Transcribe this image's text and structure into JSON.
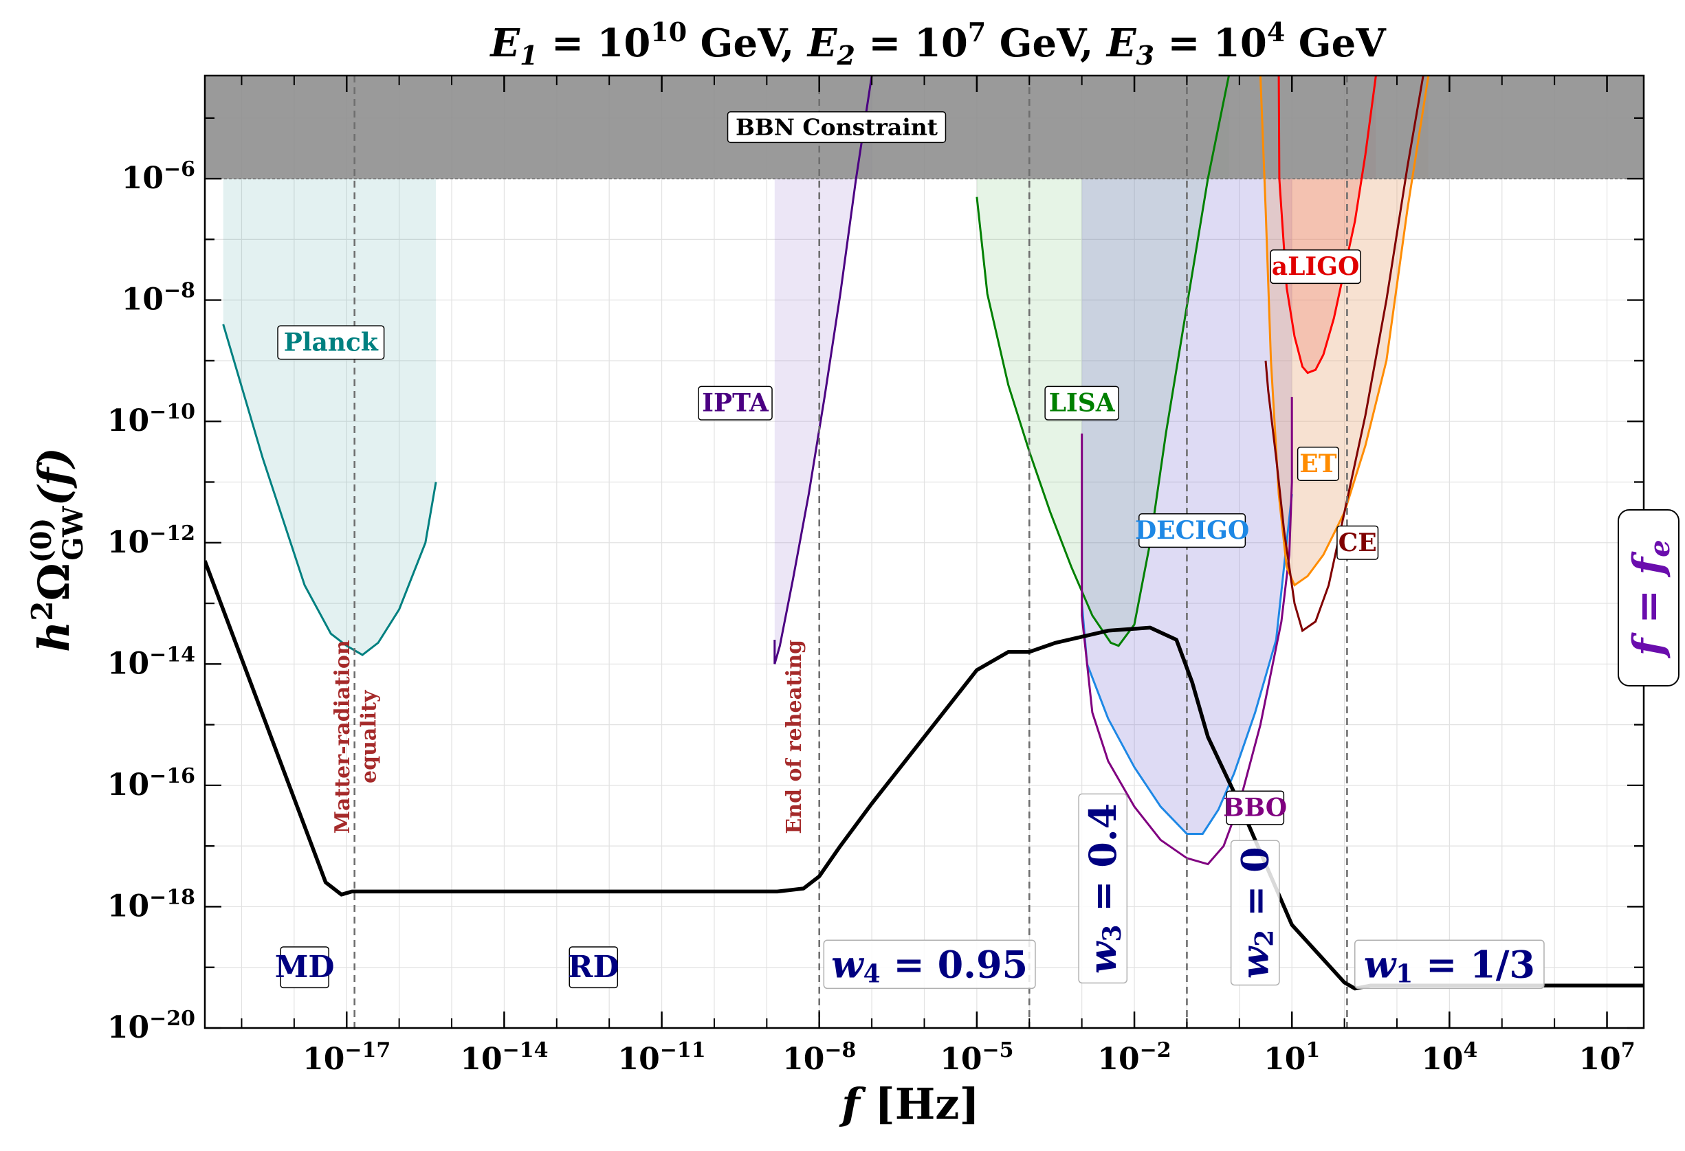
{
  "chart_data": {
    "type": "line",
    "title": "E1 = 10^10 GeV,  E2 = 10^7 GeV,  E3 = 10^4 GeV",
    "title_parts": [
      {
        "var": "E",
        "sub": "1",
        "eq": " = 10",
        "sup": "10",
        "unit": " GeV,"
      },
      {
        "var": "E",
        "sub": "2",
        "eq": " = 10",
        "sup": "7",
        "unit": " GeV,"
      },
      {
        "var": "E",
        "sub": "3",
        "eq": " = 10",
        "sup": "4",
        "unit": " GeV"
      }
    ],
    "xlabel": {
      "var": "f",
      "unit": " [Hz]"
    },
    "ylabel": {
      "pre": "h",
      "sup2": "2",
      "omega": "Ω",
      "sup0": "(0)",
      "sub": "GW",
      "post": "(f)"
    },
    "xscale": "log10",
    "yscale": "log10",
    "xlim": [
      -19.7,
      7.7
    ],
    "ylim": [
      -20,
      -4.3
    ],
    "x_ticks": [
      {
        "exp": -17,
        "label": "10",
        "sup": "−17"
      },
      {
        "exp": -14,
        "label": "10",
        "sup": "−14"
      },
      {
        "exp": -11,
        "label": "10",
        "sup": "−11"
      },
      {
        "exp": -8,
        "label": "10",
        "sup": "−8"
      },
      {
        "exp": -5,
        "label": "10",
        "sup": "−5"
      },
      {
        "exp": -2,
        "label": "10",
        "sup": "−2"
      },
      {
        "exp": 1,
        "label": "10",
        "sup": "1"
      },
      {
        "exp": 4,
        "label": "10",
        "sup": "4"
      },
      {
        "exp": 7,
        "label": "10",
        "sup": "7"
      }
    ],
    "y_ticks": [
      {
        "exp": -6,
        "label": "10",
        "sup": "−6"
      },
      {
        "exp": -8,
        "label": "10",
        "sup": "−8"
      },
      {
        "exp": -10,
        "label": "10",
        "sup": "−10"
      },
      {
        "exp": -12,
        "label": "10",
        "sup": "−12"
      },
      {
        "exp": -14,
        "label": "10",
        "sup": "−14"
      },
      {
        "exp": -16,
        "label": "10",
        "sup": "−16"
      },
      {
        "exp": -18,
        "label": "10",
        "sup": "−18"
      },
      {
        "exp": -20,
        "label": "10",
        "sup": "−20"
      }
    ],
    "grid": true,
    "bbn": {
      "label": "BBN Constraint",
      "y_min_log": -6,
      "color": "#8c8c8c"
    },
    "gw_spectrum": {
      "name": "GW spectrum",
      "color": "#000000",
      "log_f": [
        -19.7,
        -17.4,
        -17.1,
        -16.9,
        -16.6,
        -8.8,
        -8.3,
        -8.0,
        -7.6,
        -7.0,
        -6.0,
        -5.0,
        -4.4,
        -4.0,
        -3.5,
        -2.5,
        -1.7,
        -1.2,
        -0.9,
        -0.6,
        0.0,
        1.0,
        2.0,
        2.2,
        2.5,
        3.0,
        7.7
      ],
      "log_omega": [
        -12.3,
        -17.6,
        -17.8,
        -17.75,
        -17.75,
        -17.75,
        -17.7,
        -17.5,
        -17.0,
        -16.3,
        -15.2,
        -14.1,
        -13.8,
        -13.8,
        -13.65,
        -13.45,
        -13.4,
        -13.6,
        -14.3,
        -15.2,
        -16.3,
        -18.3,
        -19.25,
        -19.35,
        -19.3,
        -19.3,
        -19.3
      ]
    },
    "detectors": [
      {
        "name": "Planck",
        "color": "#008080",
        "fill": "#008080",
        "fill_opacity": 0.11,
        "log_f": [
          -19.35,
          -18.6,
          -17.8,
          -17.3,
          -17.0,
          -16.9,
          -16.7,
          -16.4,
          -16.0,
          -15.5,
          -15.3
        ],
        "log_omega": [
          -8.4,
          -10.6,
          -12.7,
          -13.5,
          -13.7,
          -13.75,
          -13.85,
          -13.65,
          -13.1,
          -12.0,
          -11.0
        ],
        "fill_top_log": -6,
        "label_log_f": -17.3,
        "label_log_omega": -8.7,
        "label_color": "#008080"
      },
      {
        "name": "IPTA",
        "color": "#4b0082",
        "fill": "#9575cd",
        "fill_opacity": 0.18,
        "log_f": [
          -8.85,
          -8.85,
          -8.75,
          -8.5,
          -8.2,
          -7.9,
          -7.6,
          -7.3,
          -7.0
        ],
        "log_omega": [
          -13.6,
          -14.0,
          -13.7,
          -12.6,
          -11.2,
          -9.6,
          -7.9,
          -6.0,
          -4.3
        ],
        "fill_top_log": -6,
        "label_log_f": -9.6,
        "label_log_omega": -9.7,
        "label_color": "#4b0082"
      },
      {
        "name": "LISA",
        "color": "#008000",
        "fill": "#4caf50",
        "fill_opacity": 0.14,
        "log_f": [
          -5.0,
          -4.8,
          -4.4,
          -4.0,
          -3.6,
          -3.2,
          -2.8,
          -2.45,
          -2.3,
          -2.0,
          -1.7,
          -1.4,
          -1.0,
          -0.6,
          -0.2
        ],
        "log_omega": [
          -6.3,
          -7.9,
          -9.4,
          -10.5,
          -11.5,
          -12.4,
          -13.2,
          -13.65,
          -13.7,
          -13.35,
          -12.0,
          -10.2,
          -8.1,
          -6.0,
          -4.3
        ],
        "fill_top_log": -6,
        "label_log_f": -3.0,
        "label_log_omega": -9.7,
        "label_color": "#008000"
      },
      {
        "name": "DECIGO",
        "color": "#1e88e5",
        "fill": "#6a5acd",
        "fill_opacity": 0.22,
        "log_f": [
          -3.0,
          -2.9,
          -2.5,
          -2.0,
          -1.5,
          -1.0,
          -0.7,
          -0.4,
          -0.1,
          0.3,
          0.7,
          1.0
        ],
        "log_omega": [
          -13.0,
          -14.0,
          -14.9,
          -15.7,
          -16.35,
          -16.8,
          -16.8,
          -16.4,
          -15.8,
          -14.8,
          -13.6,
          -11.2
        ],
        "fill_top_log": -6,
        "label_log_f": -0.9,
        "label_log_omega": -11.8,
        "label_color": "#1e88e5"
      },
      {
        "name": "BBO",
        "color": "#800080",
        "fill": "#6a5acd",
        "fill_opacity": 0.0,
        "log_f": [
          -3.0,
          -3.0,
          -2.8,
          -2.5,
          -2.0,
          -1.5,
          -1.0,
          -0.6,
          -0.3,
          0.0,
          0.4,
          0.8,
          0.95,
          1.0,
          1.0
        ],
        "log_omega": [
          -10.2,
          -13.2,
          -14.8,
          -15.6,
          -16.35,
          -16.9,
          -17.2,
          -17.3,
          -17.0,
          -16.3,
          -15.0,
          -13.3,
          -12.2,
          -11.0,
          -9.6
        ],
        "fill_top_log": null,
        "label_log_f": 0.3,
        "label_log_omega": -16.37,
        "label_color": "#800080"
      },
      {
        "name": "aLIGO",
        "color": "#ff0000",
        "fill": "#ef5350",
        "fill_opacity": 0.28,
        "log_f": [
          0.75,
          0.76,
          0.9,
          1.05,
          1.2,
          1.3,
          1.45,
          1.6,
          1.8,
          2.0,
          2.2,
          2.4,
          2.6
        ],
        "log_omega": [
          -4.3,
          -6.0,
          -7.8,
          -8.6,
          -9.1,
          -9.2,
          -9.15,
          -8.9,
          -8.3,
          -7.5,
          -6.7,
          -5.6,
          -4.3
        ],
        "fill_top_log": -6,
        "label_log_f": 1.45,
        "label_log_omega": -7.45,
        "label_color": "#e00000"
      },
      {
        "name": "ET",
        "color": "#ff8c00",
        "fill": "#e8a87c",
        "fill_opacity": 0.35,
        "log_f": [
          0.4,
          0.5,
          0.6,
          0.75,
          0.9,
          1.05,
          1.3,
          1.6,
          2.0,
          2.4,
          2.8,
          3.2,
          3.6
        ],
        "log_omega": [
          -4.3,
          -6.5,
          -9.0,
          -11.2,
          -12.4,
          -12.7,
          -12.55,
          -12.2,
          -11.5,
          -10.4,
          -9.0,
          -6.5,
          -4.3
        ],
        "fill_top_log": -6,
        "label_log_f": 1.5,
        "label_log_omega": -10.7,
        "label_color": "#ff8c00"
      },
      {
        "name": "CE",
        "color": "#800000",
        "fill": "#e8a87c",
        "fill_opacity": 0.0,
        "log_f": [
          0.5,
          0.55,
          0.7,
          0.85,
          1.05,
          1.2,
          1.45,
          1.7,
          2.0,
          2.4,
          2.8,
          3.2,
          3.5
        ],
        "log_omega": [
          -9.0,
          -9.5,
          -10.6,
          -11.8,
          -13.0,
          -13.45,
          -13.3,
          -12.7,
          -11.5,
          -9.9,
          -8.0,
          -5.8,
          -4.3
        ],
        "fill_top_log": null,
        "label_log_f": 2.25,
        "label_log_omega": -12.0,
        "label_color": "#800000"
      }
    ],
    "vertical_lines_log_f": [
      -16.85,
      -8.0,
      -4.0,
      -1.0,
      2.05
    ],
    "annotations": [
      {
        "text": "Matter-radiation",
        "log_f": -16.95,
        "log_omega": -15.2,
        "color": "#a52a2a",
        "rotation": -90
      },
      {
        "text": "equality",
        "log_f": -16.45,
        "log_omega": -15.2,
        "color": "#a52a2a",
        "rotation": -90
      },
      {
        "text": "End of reheating",
        "log_f": -8.35,
        "log_omega": -15.2,
        "color": "#a52a2a",
        "rotation": -90
      }
    ],
    "region_labels": [
      {
        "text": "MD",
        "log_f": -17.8,
        "log_omega": -19.0
      },
      {
        "text": "RD",
        "log_f": -12.3,
        "log_omega": -19.0
      }
    ],
    "eos_labels": [
      {
        "var": "w",
        "sub": "4",
        "val": " = 0.95",
        "log_f": -5.9,
        "log_omega": -18.95,
        "rotation": 0
      },
      {
        "var": "w",
        "sub": "3",
        "val": " = 0.4",
        "log_f": -2.6,
        "log_omega": -17.7,
        "rotation": -90
      },
      {
        "var": "w",
        "sub": "2",
        "val": " = 0",
        "log_f": 0.3,
        "log_omega": -18.1,
        "rotation": -90
      },
      {
        "var": "w",
        "sub": "1",
        "val": " = 1/3",
        "log_f": 4.0,
        "log_omega": -18.95,
        "rotation": 0
      }
    ],
    "side_label": {
      "text": "f = f",
      "sub": "e",
      "color": "#6a0dad"
    }
  }
}
